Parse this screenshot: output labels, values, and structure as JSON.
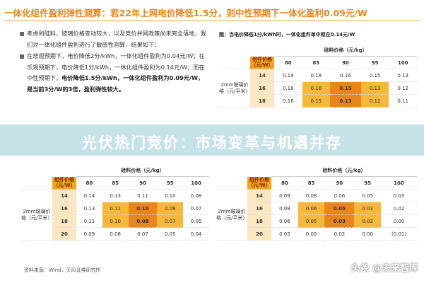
{
  "title": "一体化组件盈利弹性测算：若22年上网电价降低1.5分，则中性预期下一体化盈利0.09元/W",
  "bullets": [
    [
      {
        "text": "考虑到硅料、玻璃价格变动较大，以及竞价并网政策尚未完全落地，我们对一体化组件盈利进行了敏感性测算，结果如下：",
        "bold": false
      }
    ],
    [
      {
        "text": "在悲观预期下，电价降低2分/kWh，一体化组件盈利为0.04元/W；在乐观预期下，电价降低1分/kWh，一体化组件盈利为0.14元/W；而在中性预期下，",
        "bold": false
      },
      {
        "text": "电价降低1.5分/kWh，一体化组件盈利为0.09元/W，是当前3分/W的3倍，盈利弹性较大。",
        "bold": true
      }
    ]
  ],
  "tables": [
    {
      "caption": "图：当电价降低1分/kWh时，一体化组件单中枢在0.14元/W",
      "header": "硅料价格（元/kg）",
      "corner": "组件价格（元/W）",
      "row_label": "2mm玻璃价格（元/平米）",
      "columns": [
        80,
        85,
        90,
        95,
        100
      ],
      "rows": [
        {
          "label": 14,
          "values": [
            "0.19",
            "0.18",
            "0.16",
            "0.15",
            "0.13"
          ]
        },
        {
          "label": 16,
          "values": [
            "0.18",
            "0.16",
            "0.15",
            "0.13",
            "0.12"
          ]
        },
        {
          "label": 18,
          "values": [
            "0.16",
            "0.15",
            "0.13",
            "0.12",
            "0.11"
          ]
        }
      ]
    },
    {
      "header": "硅料价格（元/kg）",
      "corner": "组件价格（元/W）",
      "row_label": "2mm玻璃价格（元/平米）",
      "columns": [
        80,
        85,
        90,
        95,
        100
      ],
      "rows": [
        {
          "label": 14,
          "values": [
            "0.14",
            "0.13",
            "0.11",
            "0.10",
            "0.08"
          ]
        },
        {
          "label": 16,
          "values": [
            "0.13",
            "0.11",
            "0.10",
            "0.08",
            "0.07"
          ]
        },
        {
          "label": 18,
          "values": [
            "0.11",
            "0.10",
            "0.08",
            "0.07",
            "0.05"
          ]
        },
        {
          "label": 20,
          "values": [
            "0.09",
            "0.08",
            "0.07",
            "0.05",
            "0.04"
          ]
        }
      ]
    },
    {
      "header": "硅料价格（元/kg）",
      "corner": "组件价格（元/W）",
      "row_label": "2mm玻璃价格（元/平米）",
      "columns": [
        80,
        85,
        90,
        95,
        100
      ],
      "rows": [
        {
          "label": 14,
          "values": [
            "0.09",
            "0.08",
            "0.06",
            "0.05",
            "0.03"
          ]
        },
        {
          "label": 16,
          "values": [
            "0.08",
            "0.06",
            "0.05",
            "0.03",
            "0.02"
          ]
        },
        {
          "label": 18,
          "values": [
            "0.06",
            "0.05",
            "0.03",
            "0.02",
            "0.00"
          ]
        },
        {
          "label": 20,
          "values": [
            "0.05",
            "0.03",
            "0.02",
            "0.00",
            "(0.01)"
          ]
        }
      ]
    }
  ],
  "banner": "光伏热门竞价：市场变革与机遇并存",
  "source": "资料来源：Wind，天风证券研究所",
  "watermark": "头条 @未来智库"
}
